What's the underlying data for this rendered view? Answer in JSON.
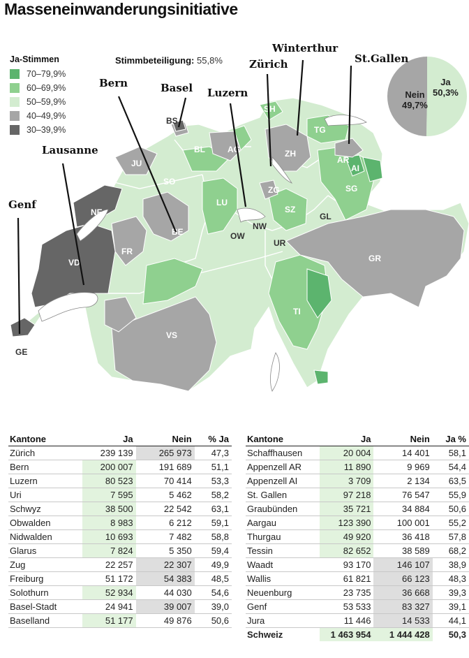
{
  "title": "Masseneinwanderungsinitiative",
  "legend": {
    "title": "Ja-Stimmen",
    "items": [
      {
        "label": "70–79,9%",
        "color": "#5cb46e"
      },
      {
        "label": "60–69,9%",
        "color": "#8fd08f"
      },
      {
        "label": "50–59,9%",
        "color": "#d3ecd0"
      },
      {
        "label": "40–49,9%",
        "color": "#a6a6a6"
      },
      {
        "label": "30–39,9%",
        "color": "#666666"
      }
    ]
  },
  "turnout": {
    "label": "Stimmbeteiligung:",
    "value": "55,8%"
  },
  "pie": {
    "ja_label": "Ja",
    "ja_value": "50,3%",
    "ja_percent": 50.3,
    "ja_color": "#d3ecd0",
    "nein_label": "Nein",
    "nein_value": "49,7%",
    "nein_percent": 49.7,
    "nein_color": "#a6a6a6"
  },
  "handwritten": {
    "genf": "Genf",
    "lausanne": "Lausanne",
    "bern": "Bern",
    "basel": "Basel",
    "luzern": "Luzern",
    "zurich": "Zürich",
    "winterthur": "Winterthur",
    "stgallen": "St.Gallen"
  },
  "canton_codes": {
    "sh": "SH",
    "bs": "BS",
    "bl": "BL",
    "ag": "AG",
    "zh": "ZH",
    "tg": "TG",
    "ar": "AR",
    "ai": "AI",
    "sg": "SG",
    "ju": "JU",
    "so": "SO",
    "lu": "LU",
    "zg": "ZG",
    "sz": "SZ",
    "gl": "GL",
    "ne": "NE",
    "be": "BE",
    "ow": "OW",
    "nw": "NW",
    "ur": "UR",
    "fr": "FR",
    "vd": "VD",
    "gr": "GR",
    "ti": "TI",
    "vs": "VS",
    "ge": "GE"
  },
  "table_left": {
    "headers": {
      "kanton": "Kantone",
      "ja": "Ja",
      "nein": "Nein",
      "pct": "% Ja"
    },
    "rows": [
      {
        "kanton": "Zürich",
        "ja": "239 139",
        "nein": "265 973",
        "pct": "47,3",
        "win": "nein"
      },
      {
        "kanton": "Bern",
        "ja": "200 007",
        "nein": "191 689",
        "pct": "51,1",
        "win": "ja"
      },
      {
        "kanton": "Luzern",
        "ja": "80 523",
        "nein": "70 414",
        "pct": "53,3",
        "win": "ja"
      },
      {
        "kanton": "Uri",
        "ja": "7 595",
        "nein": "5 462",
        "pct": "58,2",
        "win": "ja"
      },
      {
        "kanton": "Schwyz",
        "ja": "38 500",
        "nein": "22 542",
        "pct": "63,1",
        "win": "ja"
      },
      {
        "kanton": "Obwalden",
        "ja": "8 983",
        "nein": "6 212",
        "pct": "59,1",
        "win": "ja"
      },
      {
        "kanton": "Nidwalden",
        "ja": "10 693",
        "nein": "7 482",
        "pct": "58,8",
        "win": "ja"
      },
      {
        "kanton": "Glarus",
        "ja": "7 824",
        "nein": "5 350",
        "pct": "59,4",
        "win": "ja"
      },
      {
        "kanton": "Zug",
        "ja": "22 257",
        "nein": "22 307",
        "pct": "49,9",
        "win": "nein"
      },
      {
        "kanton": "Freiburg",
        "ja": "51 172",
        "nein": "54 383",
        "pct": "48,5",
        "win": "nein"
      },
      {
        "kanton": "Solothurn",
        "ja": "52 934",
        "nein": "44 030",
        "pct": "54,6",
        "win": "ja"
      },
      {
        "kanton": "Basel-Stadt",
        "ja": "24 941",
        "nein": "39 007",
        "pct": "39,0",
        "win": "nein"
      },
      {
        "kanton": "Baselland",
        "ja": "51 177",
        "nein": "49 876",
        "pct": "50,6",
        "win": "ja"
      }
    ]
  },
  "table_right": {
    "headers": {
      "kanton": "Kantone",
      "ja": "Ja",
      "nein": "Nein",
      "pct": "Ja %"
    },
    "rows": [
      {
        "kanton": "Schaffhausen",
        "ja": "20 004",
        "nein": "14 401",
        "pct": "58,1",
        "win": "ja"
      },
      {
        "kanton": "Appenzell AR",
        "ja": "11 890",
        "nein": "9 969",
        "pct": "54,4",
        "win": "ja"
      },
      {
        "kanton": "Appenzell AI",
        "ja": "3 709",
        "nein": "2 134",
        "pct": "63,5",
        "win": "ja"
      },
      {
        "kanton": "St. Gallen",
        "ja": "97 218",
        "nein": "76 547",
        "pct": "55,9",
        "win": "ja"
      },
      {
        "kanton": "Graubünden",
        "ja": "35 721",
        "nein": "34 884",
        "pct": "50,6",
        "win": "ja"
      },
      {
        "kanton": "Aargau",
        "ja": "123 390",
        "nein": "100 001",
        "pct": "55,2",
        "win": "ja"
      },
      {
        "kanton": "Thurgau",
        "ja": "49 920",
        "nein": "36 418",
        "pct": "57,8",
        "win": "ja"
      },
      {
        "kanton": "Tessin",
        "ja": "82 652",
        "nein": "38 589",
        "pct": "68,2",
        "win": "ja"
      },
      {
        "kanton": "Waadt",
        "ja": "93 170",
        "nein": "146 107",
        "pct": "38,9",
        "win": "nein"
      },
      {
        "kanton": "Wallis",
        "ja": "61 821",
        "nein": "66 123",
        "pct": "48,3",
        "win": "nein"
      },
      {
        "kanton": "Neuenburg",
        "ja": "23 735",
        "nein": "36 668",
        "pct": "39,3",
        "win": "nein"
      },
      {
        "kanton": "Genf",
        "ja": "53 533",
        "nein": "83 327",
        "pct": "39,1",
        "win": "nein"
      },
      {
        "kanton": "Jura",
        "ja": "11 446",
        "nein": "14 533",
        "pct": "44,1",
        "win": "nein"
      }
    ],
    "total": {
      "kanton": "Schweiz",
      "ja": "1 463 954",
      "nein": "1 444 428",
      "pct": "50,3"
    }
  }
}
